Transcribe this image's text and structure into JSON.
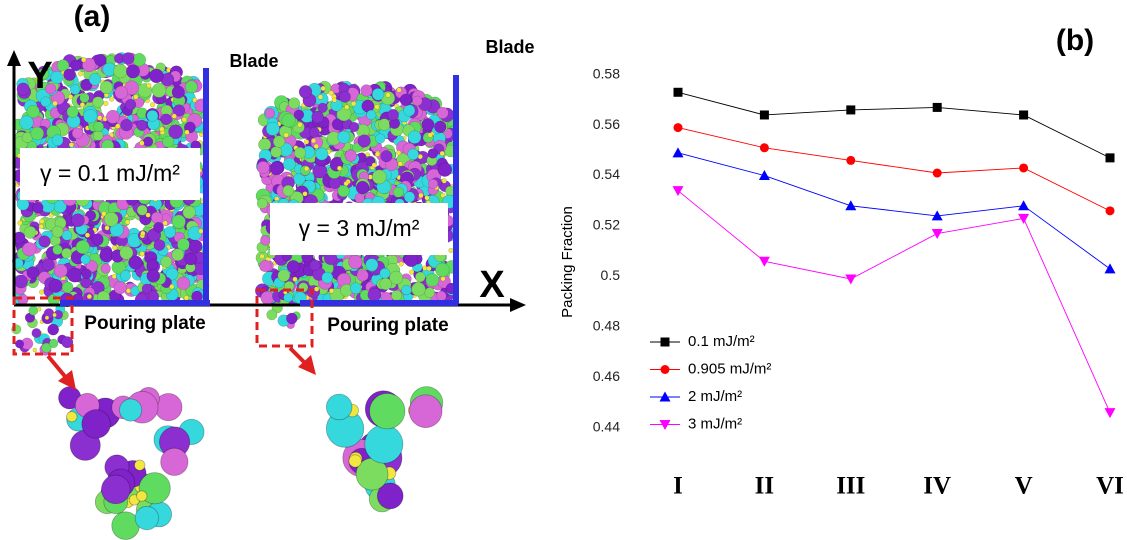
{
  "panel_a": {
    "label": "(a)",
    "y_axis": "Y",
    "x_axis": "X",
    "left": {
      "blade": "Blade",
      "gamma": "γ = 0.1 mJ/m²",
      "plate": "Pouring plate"
    },
    "right": {
      "blade": "Blade",
      "gamma": "γ = 3 mJ/m²",
      "plate": "Pouring plate"
    }
  },
  "chart_data": {
    "type": "line",
    "panel_label": "(b)",
    "y_label": "Packing Fraction",
    "categories": [
      "I",
      "II",
      "III",
      "IV",
      "V",
      "VI"
    ],
    "series": [
      {
        "name": "0.1 mJ/m²",
        "color": "#000000",
        "marker": "square",
        "values": [
          0.573,
          0.564,
          0.566,
          0.567,
          0.564,
          0.547
        ]
      },
      {
        "name": "0.905 mJ/m²",
        "color": "#ff0000",
        "marker": "circle",
        "values": [
          0.559,
          0.551,
          0.546,
          0.541,
          0.543,
          0.526
        ]
      },
      {
        "name": "2 mJ/m²",
        "color": "#0000ff",
        "marker": "triangle-up",
        "values": [
          0.549,
          0.54,
          0.528,
          0.524,
          0.528,
          0.503
        ]
      },
      {
        "name": "3 mJ/m²",
        "color": "#ff00ff",
        "marker": "triangle-down",
        "values": [
          0.534,
          0.506,
          0.499,
          0.517,
          0.523,
          0.446
        ]
      }
    ],
    "ylim": [
      0.432,
      0.585
    ],
    "yticks": [
      0.44,
      0.46,
      0.48,
      0.5,
      0.52,
      0.54,
      0.56,
      0.58
    ],
    "grid": false,
    "legend": "lower left"
  }
}
